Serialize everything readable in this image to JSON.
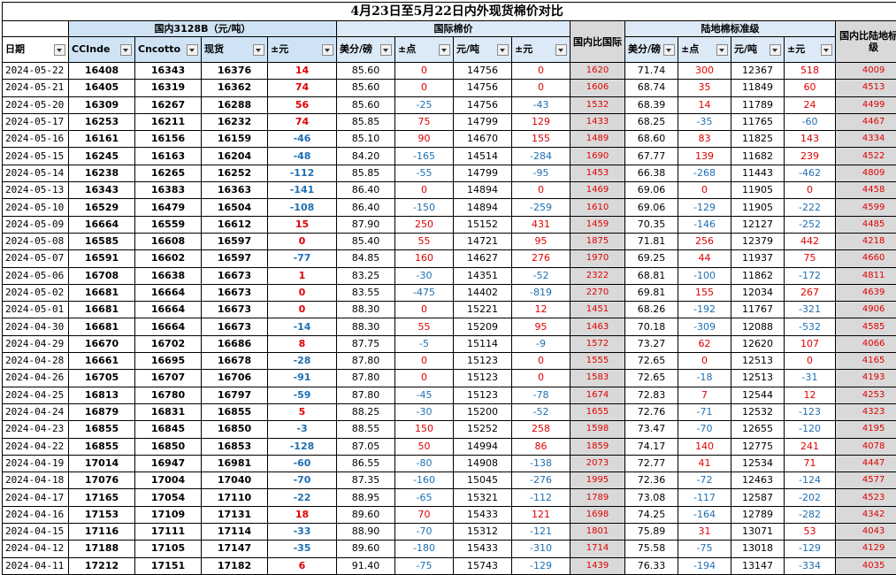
{
  "title": "4月23日至5月22日内外现货棉价对比",
  "groups": {
    "domestic": "国内3128B（元/吨）",
    "intl": "国际棉价",
    "land": "陆地棉标准级"
  },
  "headers": {
    "date": "日期",
    "ccindex": "CCInde",
    "cncotton": "Cncotto",
    "spot": "现货",
    "chg_yuan": "±元",
    "usc_lb": "美分/磅",
    "chg_pt": "±点",
    "yuan_t": "元/吨",
    "chg_yuan2": "±元",
    "dom_vs_intl": "国内比国际",
    "land_usc": "美分/磅",
    "land_chg_pt": "±点",
    "land_yuan": "元/吨",
    "land_chg_yuan": "±元",
    "dom_vs_land": "国内比陆地标准级"
  },
  "colors": {
    "positive": "#e00000",
    "negative": "#1f6fb2",
    "spread_bg": "#d9d9d9"
  },
  "rows": [
    [
      "2024-05-22",
      "16408",
      "16343",
      "16376",
      "14",
      "85.60",
      "0",
      "14756",
      "0",
      "1620",
      "71.74",
      "300",
      "12367",
      "518",
      "4009"
    ],
    [
      "2024-05-21",
      "16405",
      "16319",
      "16362",
      "74",
      "85.60",
      "0",
      "14756",
      "0",
      "1606",
      "68.74",
      "35",
      "11849",
      "60",
      "4513"
    ],
    [
      "2024-05-20",
      "16309",
      "16267",
      "16288",
      "56",
      "85.60",
      "-25",
      "14756",
      "-43",
      "1532",
      "68.39",
      "14",
      "11789",
      "24",
      "4499"
    ],
    [
      "2024-05-17",
      "16253",
      "16211",
      "16232",
      "74",
      "85.85",
      "75",
      "14799",
      "129",
      "1433",
      "68.25",
      "-35",
      "11765",
      "-60",
      "4467"
    ],
    [
      "2024-05-16",
      "16161",
      "16156",
      "16159",
      "-46",
      "85.10",
      "90",
      "14670",
      "155",
      "1489",
      "68.60",
      "83",
      "11825",
      "143",
      "4334"
    ],
    [
      "2024-05-15",
      "16245",
      "16163",
      "16204",
      "-48",
      "84.20",
      "-165",
      "14514",
      "-284",
      "1690",
      "67.77",
      "139",
      "11682",
      "239",
      "4522"
    ],
    [
      "2024-05-14",
      "16238",
      "16265",
      "16252",
      "-112",
      "85.85",
      "-55",
      "14799",
      "-95",
      "1453",
      "66.38",
      "-268",
      "11443",
      "-462",
      "4809"
    ],
    [
      "2024-05-13",
      "16343",
      "16383",
      "16363",
      "-141",
      "86.40",
      "0",
      "14894",
      "0",
      "1469",
      "69.06",
      "0",
      "11905",
      "0",
      "4458"
    ],
    [
      "2024-05-10",
      "16529",
      "16479",
      "16504",
      "-108",
      "86.40",
      "-150",
      "14894",
      "-259",
      "1610",
      "69.06",
      "-129",
      "11905",
      "-222",
      "4599"
    ],
    [
      "2024-05-09",
      "16664",
      "16559",
      "16612",
      "15",
      "87.90",
      "250",
      "15152",
      "431",
      "1459",
      "70.35",
      "-146",
      "12127",
      "-252",
      "4485"
    ],
    [
      "2024-05-08",
      "16585",
      "16608",
      "16597",
      "0",
      "85.40",
      "55",
      "14721",
      "95",
      "1875",
      "71.81",
      "256",
      "12379",
      "442",
      "4218"
    ],
    [
      "2024-05-07",
      "16591",
      "16602",
      "16597",
      "-77",
      "84.85",
      "160",
      "14627",
      "276",
      "1970",
      "69.25",
      "44",
      "11937",
      "75",
      "4660"
    ],
    [
      "2024-05-06",
      "16708",
      "16638",
      "16673",
      "1",
      "83.25",
      "-30",
      "14351",
      "-52",
      "2322",
      "68.81",
      "-100",
      "11862",
      "-172",
      "4811"
    ],
    [
      "2024-05-02",
      "16681",
      "16664",
      "16673",
      "0",
      "83.55",
      "-475",
      "14402",
      "-819",
      "2270",
      "69.81",
      "155",
      "12034",
      "267",
      "4639"
    ],
    [
      "2024-05-01",
      "16681",
      "16664",
      "16673",
      "0",
      "88.30",
      "0",
      "15221",
      "12",
      "1451",
      "68.26",
      "-192",
      "11767",
      "-321",
      "4906"
    ],
    [
      "2024-04-30",
      "16681",
      "16664",
      "16673",
      "-14",
      "88.30",
      "55",
      "15209",
      "95",
      "1463",
      "70.18",
      "-309",
      "12088",
      "-532",
      "4585"
    ],
    [
      "2024-04-29",
      "16670",
      "16702",
      "16686",
      "8",
      "87.75",
      "-5",
      "15114",
      "-9",
      "1572",
      "73.27",
      "62",
      "12620",
      "107",
      "4066"
    ],
    [
      "2024-04-28",
      "16661",
      "16695",
      "16678",
      "-28",
      "87.80",
      "0",
      "15123",
      "0",
      "1555",
      "72.65",
      "0",
      "12513",
      "0",
      "4165"
    ],
    [
      "2024-04-26",
      "16705",
      "16707",
      "16706",
      "-91",
      "87.80",
      "0",
      "15123",
      "0",
      "1583",
      "72.65",
      "-18",
      "12513",
      "-31",
      "4193"
    ],
    [
      "2024-04-25",
      "16813",
      "16780",
      "16797",
      "-59",
      "87.80",
      "-45",
      "15123",
      "-78",
      "1674",
      "72.83",
      "7",
      "12544",
      "12",
      "4253"
    ],
    [
      "2024-04-24",
      "16879",
      "16831",
      "16855",
      "5",
      "88.25",
      "-30",
      "15200",
      "-52",
      "1655",
      "72.76",
      "-71",
      "12532",
      "-123",
      "4323"
    ],
    [
      "2024-04-23",
      "16855",
      "16845",
      "16850",
      "-3",
      "88.55",
      "150",
      "15252",
      "258",
      "1598",
      "73.47",
      "-70",
      "12655",
      "-120",
      "4195"
    ],
    [
      "2024-04-22",
      "16855",
      "16850",
      "16853",
      "-128",
      "87.05",
      "50",
      "14994",
      "86",
      "1859",
      "74.17",
      "140",
      "12775",
      "241",
      "4078"
    ],
    [
      "2024-04-19",
      "17014",
      "16947",
      "16981",
      "-60",
      "86.55",
      "-80",
      "14908",
      "-138",
      "2073",
      "72.77",
      "41",
      "12534",
      "71",
      "4447"
    ],
    [
      "2024-04-18",
      "17076",
      "17004",
      "17040",
      "-70",
      "87.35",
      "-160",
      "15045",
      "-276",
      "1995",
      "72.36",
      "-72",
      "12463",
      "-124",
      "4577"
    ],
    [
      "2024-04-17",
      "17165",
      "17054",
      "17110",
      "-22",
      "88.95",
      "-65",
      "15321",
      "-112",
      "1789",
      "73.08",
      "-117",
      "12587",
      "-202",
      "4523"
    ],
    [
      "2024-04-16",
      "17153",
      "17109",
      "17131",
      "18",
      "89.60",
      "70",
      "15433",
      "121",
      "1698",
      "74.25",
      "-164",
      "12789",
      "-282",
      "4342"
    ],
    [
      "2024-04-15",
      "17116",
      "17111",
      "17114",
      "-33",
      "88.90",
      "-70",
      "15312",
      "-121",
      "1801",
      "75.89",
      "31",
      "13071",
      "53",
      "4043"
    ],
    [
      "2024-04-12",
      "17188",
      "17105",
      "17147",
      "-35",
      "89.60",
      "-180",
      "15433",
      "-310",
      "1714",
      "75.58",
      "-75",
      "13018",
      "-129",
      "4129"
    ],
    [
      "2024-04-11",
      "17212",
      "17151",
      "17182",
      "6",
      "91.40",
      "-75",
      "15743",
      "-129",
      "1439",
      "76.33",
      "-194",
      "13147",
      "-334",
      "4035"
    ]
  ]
}
